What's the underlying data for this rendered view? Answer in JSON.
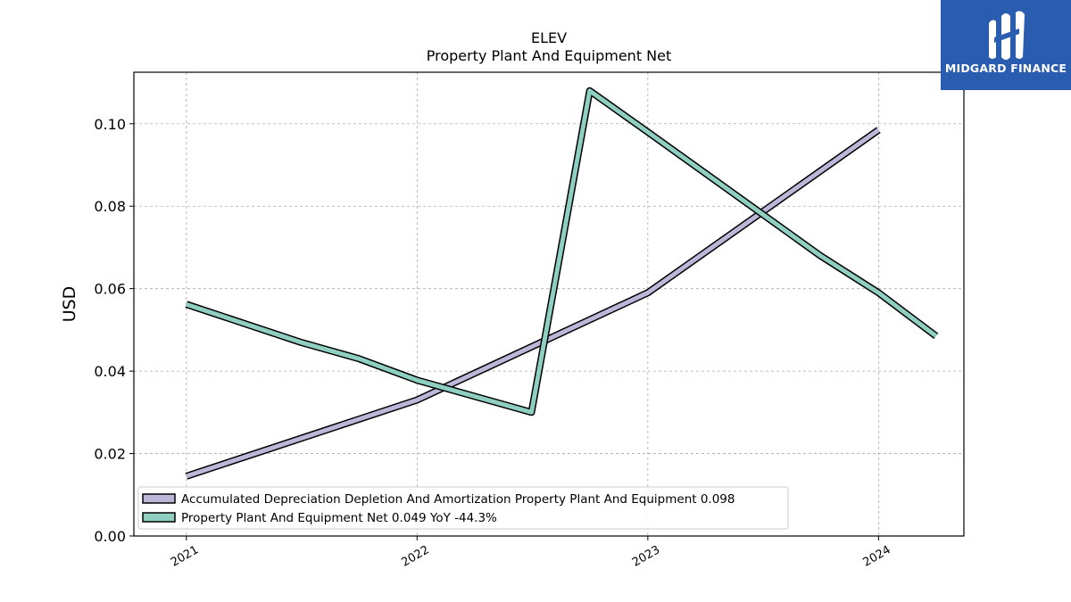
{
  "chart_data": {
    "type": "line",
    "title": "ELEV",
    "subtitle": "Property Plant And Equipment Net",
    "ylabel": "USD",
    "xlabel": "",
    "ylim": [
      0,
      0.1125
    ],
    "xlim": [
      "2020-10-10",
      "2024-05-15"
    ],
    "y_ticks": [
      "0.00",
      "0.02",
      "0.04",
      "0.06",
      "0.08",
      "0.10"
    ],
    "x_ticks": [
      "2021",
      "2022",
      "2023",
      "2024"
    ],
    "grid": true,
    "legend_position": "lower-left",
    "series": [
      {
        "name": "Accumulated Depreciation Depletion And Amortization Property Plant And Equipment",
        "legend_label": "Accumulated Depreciation Depletion And Amortization Property Plant And Equipment  0.098",
        "color": "#bcb6d9",
        "points": [
          {
            "x": "2021-01-01",
            "y": 0.0145
          },
          {
            "x": "2022-01-01",
            "y": 0.033
          },
          {
            "x": "2023-01-01",
            "y": 0.059
          },
          {
            "x": "2024-01-01",
            "y": 0.0985
          }
        ]
      },
      {
        "name": "Property Plant And Equipment Net",
        "legend_label": "Property Plant And Equipment Net  0.049 YoY -44.3%",
        "color": "#8ecfc1",
        "points": [
          {
            "x": "2021-01-01",
            "y": 0.0562
          },
          {
            "x": "2021-07-01",
            "y": 0.047
          },
          {
            "x": "2021-10-01",
            "y": 0.043
          },
          {
            "x": "2022-01-01",
            "y": 0.0378
          },
          {
            "x": "2022-07-01",
            "y": 0.03
          },
          {
            "x": "2022-10-01",
            "y": 0.108
          },
          {
            "x": "2023-01-01",
            "y": 0.098
          },
          {
            "x": "2023-10-01",
            "y": 0.068
          },
          {
            "x": "2024-01-01",
            "y": 0.059
          },
          {
            "x": "2024-04-01",
            "y": 0.0485
          }
        ]
      }
    ]
  },
  "logo": {
    "text": "MIDGARD FINANCE",
    "icon": "midgard-logo-icon",
    "background": "#2a5db0"
  }
}
